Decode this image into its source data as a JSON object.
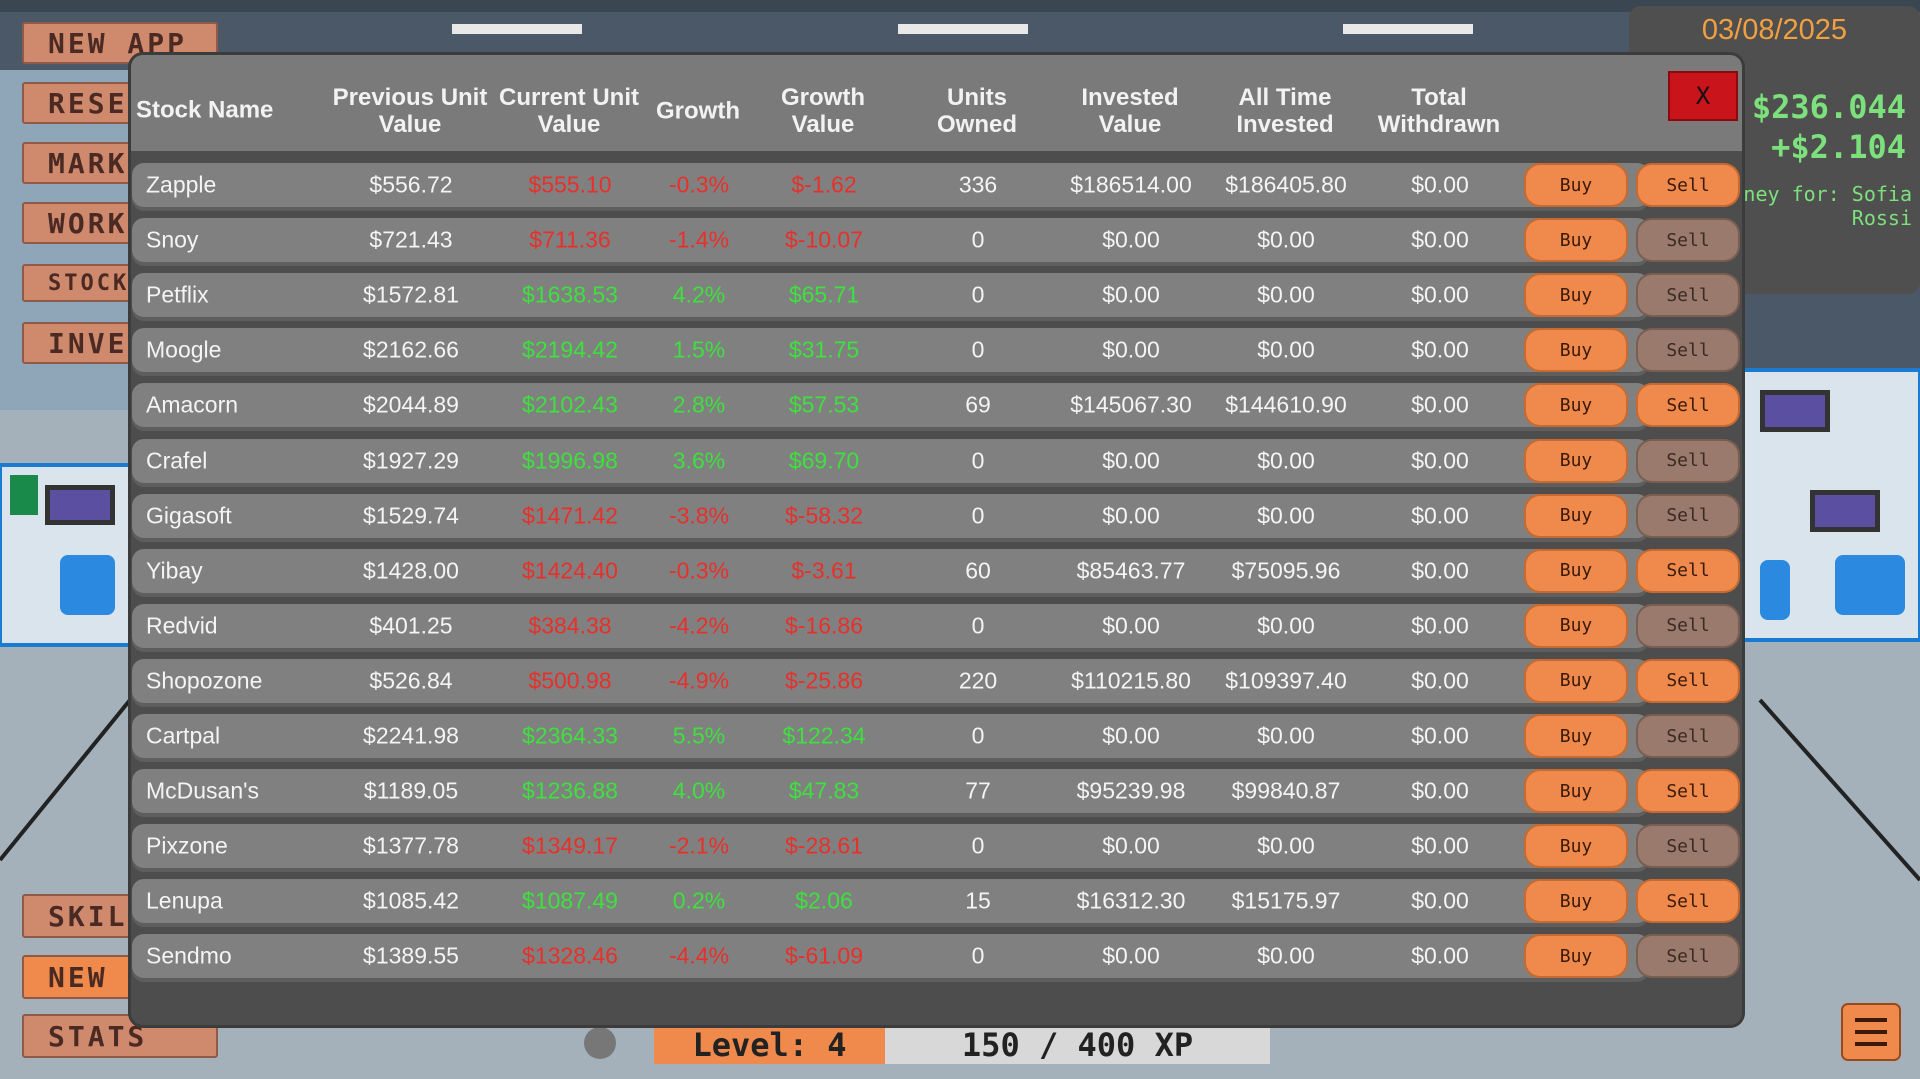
{
  "date": "03/08/2025",
  "balance": "$236.044",
  "change": "+$2.104",
  "money_for": "oney for: Sofia Rossi",
  "menu": [
    "NEW APP",
    "RESEA",
    "MARKE",
    "WORK",
    "STOCK M",
    "INVES",
    "SKIL",
    "NEW",
    "STATS"
  ],
  "close": "X",
  "buy_label": "Buy",
  "sell_label": "Sell",
  "level": "Level: 4",
  "xp": "150 / 400 XP",
  "table": {
    "headers": [
      "Stock Name",
      "Previous Unit Value",
      "Current Unit Value",
      "Growth",
      "Growth Value",
      "Units Owned",
      "Invested Value",
      "All Time Invested",
      "Total Withdrawn"
    ],
    "rows": [
      [
        "Zapple",
        "$556.72",
        "$555.10",
        "-0.3%",
        "$-1.62",
        "336",
        "$186514.00",
        "$186405.80",
        "$0.00"
      ],
      [
        "Snoy",
        "$721.43",
        "$711.36",
        "-1.4%",
        "$-10.07",
        "0",
        "$0.00",
        "$0.00",
        "$0.00"
      ],
      [
        "Petflix",
        "$1572.81",
        "$1638.53",
        "4.2%",
        "$65.71",
        "0",
        "$0.00",
        "$0.00",
        "$0.00"
      ],
      [
        "Moogle",
        "$2162.66",
        "$2194.42",
        "1.5%",
        "$31.75",
        "0",
        "$0.00",
        "$0.00",
        "$0.00"
      ],
      [
        "Amacorn",
        "$2044.89",
        "$2102.43",
        "2.8%",
        "$57.53",
        "69",
        "$145067.30",
        "$144610.90",
        "$0.00"
      ],
      [
        "Crafel",
        "$1927.29",
        "$1996.98",
        "3.6%",
        "$69.70",
        "0",
        "$0.00",
        "$0.00",
        "$0.00"
      ],
      [
        "Gigasoft",
        "$1529.74",
        "$1471.42",
        "-3.8%",
        "$-58.32",
        "0",
        "$0.00",
        "$0.00",
        "$0.00"
      ],
      [
        "Yibay",
        "$1428.00",
        "$1424.40",
        "-0.3%",
        "$-3.61",
        "60",
        "$85463.77",
        "$75095.96",
        "$0.00"
      ],
      [
        "Redvid",
        "$401.25",
        "$384.38",
        "-4.2%",
        "$-16.86",
        "0",
        "$0.00",
        "$0.00",
        "$0.00"
      ],
      [
        "Shopozone",
        "$526.84",
        "$500.98",
        "-4.9%",
        "$-25.86",
        "220",
        "$110215.80",
        "$109397.40",
        "$0.00"
      ],
      [
        "Cartpal",
        "$2241.98",
        "$2364.33",
        "5.5%",
        "$122.34",
        "0",
        "$0.00",
        "$0.00",
        "$0.00"
      ],
      [
        "McDusan's",
        "$1189.05",
        "$1236.88",
        "4.0%",
        "$47.83",
        "77",
        "$95239.98",
        "$99840.87",
        "$0.00"
      ],
      [
        "Pixzone",
        "$1377.78",
        "$1349.17",
        "-2.1%",
        "$-28.61",
        "0",
        "$0.00",
        "$0.00",
        "$0.00"
      ],
      [
        "Lenupa",
        "$1085.42",
        "$1087.49",
        "0.2%",
        "$2.06",
        "15",
        "$16312.30",
        "$15175.97",
        "$0.00"
      ],
      [
        "Sendmo",
        "$1389.55",
        "$1328.46",
        "-4.4%",
        "$-61.09",
        "0",
        "$0.00",
        "$0.00",
        "$0.00"
      ]
    ]
  }
}
